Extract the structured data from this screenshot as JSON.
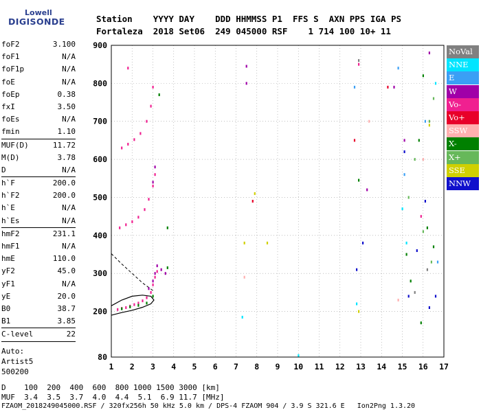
{
  "logo": {
    "line1": "Lowell",
    "line2": "DIGISONDE"
  },
  "header": {
    "line1": "Station    YYYY DAY    DDD HHMMSS P1  FFS S  AXN PPS IGA PS",
    "line2": "Fortaleza  2018 Set06  249 045000 RSF    1 714 100 10+ 11"
  },
  "params": [
    [
      {
        "k": "foF2",
        "v": "3.100"
      },
      {
        "k": "foF1",
        "v": "N/A"
      },
      {
        "k": "foF1p",
        "v": "N/A"
      },
      {
        "k": "foE",
        "v": "N/A"
      },
      {
        "k": "foEp",
        "v": "0.38"
      },
      {
        "k": "fxI",
        "v": "3.50"
      },
      {
        "k": "foEs",
        "v": "N/A"
      },
      {
        "k": "fmin",
        "v": "1.10"
      }
    ],
    [
      {
        "k": "MUF(D)",
        "v": "11.72"
      },
      {
        "k": "M(D)",
        "v": "3.78"
      },
      {
        "k": "D",
        "v": "N/A"
      }
    ],
    [
      {
        "k": "h`F",
        "v": "200.0"
      },
      {
        "k": "h`F2",
        "v": "200.0"
      },
      {
        "k": "h`E",
        "v": "N/A"
      },
      {
        "k": "h`Es",
        "v": "N/A"
      }
    ],
    [
      {
        "k": "hmF2",
        "v": "231.1"
      },
      {
        "k": "hmF1",
        "v": "N/A"
      },
      {
        "k": "hmE",
        "v": "110.0"
      },
      {
        "k": "yF2",
        "v": "45.0"
      },
      {
        "k": "yF1",
        "v": "N/A"
      },
      {
        "k": "yE",
        "v": "20.0"
      },
      {
        "k": "B0",
        "v": "38.7"
      },
      {
        "k": "B1",
        "v": "3.85"
      }
    ],
    [
      {
        "k": "C-level",
        "v": "22"
      }
    ]
  ],
  "auto": {
    "line1": "Auto:",
    "line2": "Artist5",
    "line3": "500200"
  },
  "legend": [
    {
      "label": "NoVal",
      "color": "#808080"
    },
    {
      "label": "NNE",
      "color": "#00e5ff"
    },
    {
      "label": "E",
      "color": "#3a9ff5"
    },
    {
      "label": "W",
      "color": "#a000a8"
    },
    {
      "label": "Vo-",
      "color": "#f02090"
    },
    {
      "label": "Vo+",
      "color": "#e8002a"
    },
    {
      "label": "SSW",
      "color": "#ffb0b0"
    },
    {
      "label": "X-",
      "color": "#008000"
    },
    {
      "label": "X+",
      "color": "#66b85a"
    },
    {
      "label": "SSE",
      "color": "#d0d000"
    },
    {
      "label": "NNW",
      "color": "#1010cc"
    }
  ],
  "footer": {
    "line1": "D    100  200  400  600  800 1000 1500 3000 [km]",
    "line2": "MUF  3.4  3.5  3.7  4.0  4.4  5.1  6.9 11.7 [MHz]",
    "line3": "FZAOM_2018249045000.RSF / 320fx256h 50 kHz 5.0 km / DPS-4 FZAOM 904 / 3.9 S 321.6 E   Ion2Png 1.3.20"
  },
  "chart_data": {
    "type": "scatter",
    "xlim": [
      1,
      17
    ],
    "ylim": [
      80,
      900
    ],
    "xticks": [
      "1",
      "2",
      "3",
      "4",
      "5",
      "6",
      "7",
      "8",
      "9",
      "10",
      "11",
      "12",
      "13",
      "14",
      "15",
      "16",
      "17"
    ],
    "yticks": [
      "80",
      "200",
      "300",
      "400",
      "500",
      "600",
      "700",
      "800",
      "900"
    ],
    "grid": "dotted",
    "legend_position": "right",
    "series": [
      {
        "name": "Vo-",
        "color": "#f02090",
        "points": [
          [
            1.3,
            205
          ],
          [
            1.5,
            208
          ],
          [
            1.7,
            210
          ],
          [
            1.9,
            214
          ],
          [
            2.1,
            218
          ],
          [
            2.3,
            222
          ],
          [
            2.5,
            228
          ],
          [
            2.7,
            236
          ],
          [
            2.9,
            250
          ],
          [
            3.0,
            270
          ],
          [
            3.1,
            290
          ],
          [
            3.2,
            305
          ],
          [
            1.4,
            420
          ],
          [
            1.7,
            428
          ],
          [
            2.0,
            436
          ],
          [
            2.3,
            448
          ],
          [
            2.6,
            468
          ],
          [
            2.8,
            495
          ],
          [
            3.0,
            530
          ],
          [
            3.1,
            560
          ],
          [
            1.5,
            630
          ],
          [
            1.8,
            640
          ],
          [
            2.1,
            652
          ],
          [
            2.4,
            668
          ],
          [
            2.7,
            700
          ],
          [
            2.9,
            740
          ],
          [
            3.0,
            790
          ],
          [
            1.8,
            840
          ],
          [
            12.9,
            850
          ],
          [
            15.9,
            450
          ]
        ]
      },
      {
        "name": "W",
        "color": "#a000a8",
        "points": [
          [
            2.8,
            260
          ],
          [
            3.0,
            280
          ],
          [
            3.1,
            300
          ],
          [
            3.2,
            320
          ],
          [
            3.4,
            310
          ],
          [
            3.6,
            300
          ],
          [
            3.0,
            540
          ],
          [
            3.1,
            580
          ],
          [
            7.5,
            845
          ],
          [
            7.5,
            800
          ],
          [
            16.3,
            880
          ],
          [
            15.1,
            650
          ],
          [
            14.6,
            790
          ],
          [
            13.3,
            520
          ]
        ]
      },
      {
        "name": "X-",
        "color": "#008000",
        "points": [
          [
            1.5,
            207
          ],
          [
            1.9,
            212
          ],
          [
            2.3,
            216
          ],
          [
            2.7,
            222
          ],
          [
            3.0,
            240
          ],
          [
            3.7,
            420
          ],
          [
            3.7,
            315
          ],
          [
            3.3,
            770
          ],
          [
            12.9,
            545
          ],
          [
            15.2,
            350
          ],
          [
            15.4,
            280
          ],
          [
            15.8,
            650
          ],
          [
            16.0,
            820
          ],
          [
            16.2,
            420
          ],
          [
            16.5,
            370
          ],
          [
            15.9,
            170
          ]
        ]
      },
      {
        "name": "X+",
        "color": "#66b85a",
        "points": [
          [
            15.6,
            600
          ],
          [
            16.0,
            410
          ],
          [
            16.3,
            700
          ],
          [
            16.5,
            760
          ],
          [
            15.3,
            500
          ],
          [
            16.4,
            330
          ]
        ]
      },
      {
        "name": "E",
        "color": "#3a9ff5",
        "points": [
          [
            12.7,
            790
          ],
          [
            14.8,
            840
          ],
          [
            15.1,
            560
          ],
          [
            16.7,
            330
          ],
          [
            16.1,
            700
          ]
        ]
      },
      {
        "name": "NNW",
        "color": "#1010cc",
        "points": [
          [
            12.8,
            310
          ],
          [
            13.1,
            380
          ],
          [
            15.1,
            620
          ],
          [
            15.7,
            360
          ],
          [
            16.1,
            490
          ],
          [
            16.3,
            210
          ],
          [
            16.6,
            240
          ],
          [
            15.3,
            240
          ]
        ]
      },
      {
        "name": "NNE",
        "color": "#00e5ff",
        "points": [
          [
            7.3,
            185
          ],
          [
            10.0,
            84
          ],
          [
            12.8,
            220
          ],
          [
            15.0,
            470
          ],
          [
            16.6,
            800
          ],
          [
            15.2,
            380
          ]
        ]
      },
      {
        "name": "SSE",
        "color": "#d0d000",
        "points": [
          [
            7.4,
            380
          ],
          [
            8.5,
            380
          ],
          [
            7.9,
            510
          ],
          [
            12.9,
            200
          ],
          [
            16.3,
            690
          ]
        ]
      },
      {
        "name": "SSW",
        "color": "#ffb0b0",
        "points": [
          [
            13.4,
            700
          ],
          [
            14.8,
            230
          ],
          [
            7.4,
            290
          ],
          [
            16.0,
            600
          ]
        ]
      },
      {
        "name": "Vo+",
        "color": "#e8002a",
        "points": [
          [
            7.8,
            490
          ],
          [
            14.3,
            790
          ],
          [
            12.7,
            650
          ]
        ]
      },
      {
        "name": "NoVal",
        "color": "#808080",
        "points": [
          [
            12.9,
            860
          ],
          [
            16.2,
            310
          ],
          [
            15.6,
            250
          ]
        ]
      }
    ],
    "profile_curve": [
      [
        1.0,
        190
      ],
      [
        1.5,
        197
      ],
      [
        2.0,
        203
      ],
      [
        2.5,
        211
      ],
      [
        2.9,
        220
      ],
      [
        3.05,
        230
      ],
      [
        2.9,
        240
      ],
      [
        2.5,
        243
      ],
      [
        2.0,
        240
      ],
      [
        1.5,
        230
      ],
      [
        1.0,
        215
      ]
    ],
    "dashed_curve": [
      [
        1.0,
        352
      ],
      [
        1.5,
        325
      ],
      [
        2.0,
        300
      ],
      [
        2.5,
        275
      ],
      [
        3.0,
        255
      ]
    ]
  }
}
